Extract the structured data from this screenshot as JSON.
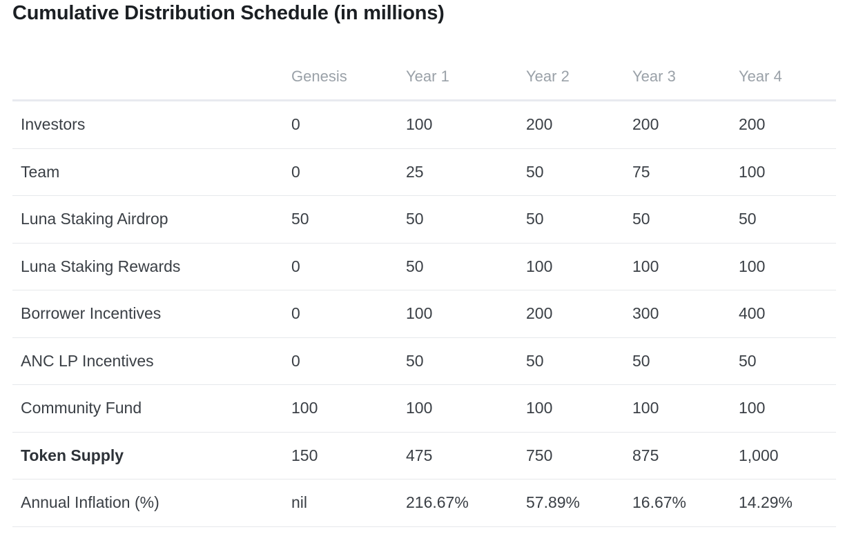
{
  "title": "Cumulative Distribution Schedule (in millions)",
  "columns": [
    "",
    "Genesis",
    "Year 1",
    "Year 2",
    "Year 3",
    "Year 4"
  ],
  "rows": [
    {
      "label": "Investors",
      "values": [
        "0",
        "100",
        "200",
        "200",
        "200"
      ]
    },
    {
      "label": "Team",
      "values": [
        "0",
        "25",
        "50",
        "75",
        "100"
      ]
    },
    {
      "label": "Luna Staking Airdrop",
      "values": [
        "50",
        "50",
        "50",
        "50",
        "50"
      ]
    },
    {
      "label": "Luna Staking Rewards",
      "values": [
        "0",
        "50",
        "100",
        "100",
        "100"
      ]
    },
    {
      "label": "Borrower Incentives",
      "values": [
        "0",
        "100",
        "200",
        "300",
        "400"
      ]
    },
    {
      "label": "ANC LP Incentives",
      "values": [
        "0",
        "50",
        "50",
        "50",
        "50"
      ]
    },
    {
      "label": "Community Fund",
      "values": [
        "100",
        "100",
        "100",
        "100",
        "100"
      ]
    },
    {
      "label": "Token Supply",
      "values": [
        "150",
        "475",
        "750",
        "875",
        "1,000"
      ],
      "bold": true
    },
    {
      "label": "Annual Inflation (%)",
      "values": [
        "nil",
        "216.67%",
        "57.89%",
        "16.67%",
        "14.29%"
      ]
    }
  ]
}
